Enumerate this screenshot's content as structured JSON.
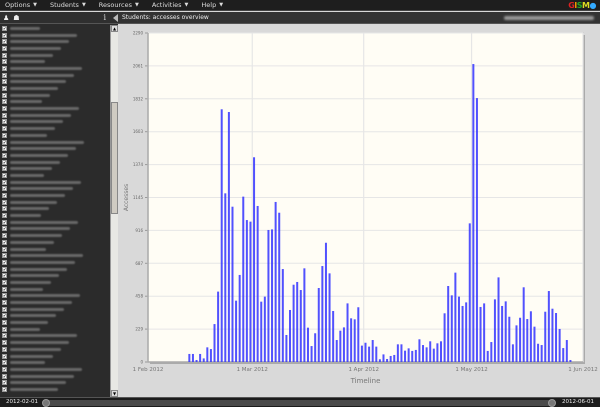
{
  "menubar": {
    "items": [
      {
        "label": "Options"
      },
      {
        "label": "Students"
      },
      {
        "label": "Resources"
      },
      {
        "label": "Activities"
      },
      {
        "label": "Help"
      }
    ],
    "logo": "GISMO"
  },
  "panel": {
    "title": "Students: accesses overview"
  },
  "sidebar": {
    "rows_checked": [
      true,
      true,
      true,
      true,
      true,
      true,
      true,
      true,
      true,
      true,
      true,
      true,
      true,
      true,
      true,
      true,
      true,
      true,
      true,
      true,
      true,
      true,
      true,
      true,
      true,
      true,
      true,
      true,
      true,
      true,
      true,
      true,
      true,
      true,
      true,
      true,
      true,
      true,
      true,
      true,
      true,
      true,
      true,
      true,
      true,
      true,
      true,
      true,
      true,
      true,
      true,
      true,
      true,
      true,
      true
    ]
  },
  "timeslider": {
    "start": "2012-02-01",
    "end": "2012-06-01"
  },
  "colors": {
    "bar": "#3333ff",
    "plot_bg": "#fffdf5"
  },
  "chart_data": {
    "type": "bar",
    "xlabel": "Timeline",
    "ylabel": "Accesses",
    "ylim": [
      0,
      2290
    ],
    "yticks": [
      "0",
      "229",
      "458",
      "687",
      "916",
      "1145",
      "1374",
      "1603",
      "1832",
      "2061",
      "2290"
    ],
    "xticks": [
      {
        "date": "2012-02-01",
        "label": "1 Feb 2012"
      },
      {
        "date": "2012-03-01",
        "label": "1 Mar 2012"
      },
      {
        "date": "2012-04-01",
        "label": "1 Apr 2012"
      },
      {
        "date": "2012-05-01",
        "label": "1 May 2012"
      },
      {
        "date": "2012-06-01",
        "label": "1 Jun 2012"
      }
    ],
    "xlim": [
      "2012-02-01",
      "2012-06-01"
    ],
    "grid": true,
    "x": [
      "2012-02-12",
      "2012-02-13",
      "2012-02-14",
      "2012-02-15",
      "2012-02-16",
      "2012-02-17",
      "2012-02-18",
      "2012-02-19",
      "2012-02-20",
      "2012-02-21",
      "2012-02-22",
      "2012-02-23",
      "2012-02-24",
      "2012-02-25",
      "2012-02-26",
      "2012-02-27",
      "2012-02-28",
      "2012-02-29",
      "2012-03-01",
      "2012-03-02",
      "2012-03-03",
      "2012-03-04",
      "2012-03-05",
      "2012-03-06",
      "2012-03-07",
      "2012-03-08",
      "2012-03-09",
      "2012-03-10",
      "2012-03-11",
      "2012-03-12",
      "2012-03-13",
      "2012-03-14",
      "2012-03-15",
      "2012-03-16",
      "2012-03-17",
      "2012-03-18",
      "2012-03-19",
      "2012-03-20",
      "2012-03-21",
      "2012-03-22",
      "2012-03-23",
      "2012-03-24",
      "2012-03-25",
      "2012-03-26",
      "2012-03-27",
      "2012-03-28",
      "2012-03-29",
      "2012-03-30",
      "2012-03-31",
      "2012-04-01",
      "2012-04-02",
      "2012-04-03",
      "2012-04-04",
      "2012-04-05",
      "2012-04-06",
      "2012-04-07",
      "2012-04-08",
      "2012-04-09",
      "2012-04-10",
      "2012-04-11",
      "2012-04-12",
      "2012-04-13",
      "2012-04-14",
      "2012-04-15",
      "2012-04-16",
      "2012-04-17",
      "2012-04-18",
      "2012-04-19",
      "2012-04-20",
      "2012-04-21",
      "2012-04-22",
      "2012-04-23",
      "2012-04-24",
      "2012-04-25",
      "2012-04-26",
      "2012-04-27",
      "2012-04-28",
      "2012-04-29",
      "2012-04-30",
      "2012-05-01",
      "2012-05-02",
      "2012-05-03",
      "2012-05-04",
      "2012-05-05",
      "2012-05-06",
      "2012-05-07",
      "2012-05-08",
      "2012-05-09",
      "2012-05-10",
      "2012-05-11",
      "2012-05-12",
      "2012-05-13",
      "2012-05-14",
      "2012-05-15",
      "2012-05-16",
      "2012-05-17",
      "2012-05-18",
      "2012-05-19",
      "2012-05-20",
      "2012-05-21",
      "2012-05-22",
      "2012-05-23",
      "2012-05-24",
      "2012-05-25",
      "2012-05-26",
      "2012-05-27",
      "2012-05-28"
    ],
    "values": [
      56,
      56,
      14,
      56,
      25,
      102,
      90,
      264,
      490,
      1759,
      1174,
      1740,
      1081,
      427,
      606,
      1151,
      988,
      977,
      1425,
      1086,
      420,
      455,
      919,
      923,
      1114,
      1039,
      647,
      188,
      362,
      538,
      557,
      501,
      652,
      239,
      111,
      200,
      515,
      668,
      830,
      617,
      355,
      153,
      218,
      241,
      408,
      304,
      297,
      381,
      114,
      134,
      107,
      153,
      107,
      19,
      53,
      21,
      42,
      49,
      123,
      123,
      79,
      95,
      77,
      84,
      158,
      118,
      102,
      144,
      93,
      130,
      144,
      339,
      529,
      464,
      622,
      455,
      390,
      415,
      965,
      2074,
      1837,
      383,
      408,
      77,
      139,
      436,
      589,
      390,
      422,
      315,
      123,
      255,
      308,
      520,
      299,
      353,
      246,
      127,
      118,
      350,
      494,
      371,
      341,
      230,
      97,
      153,
      14
    ]
  }
}
